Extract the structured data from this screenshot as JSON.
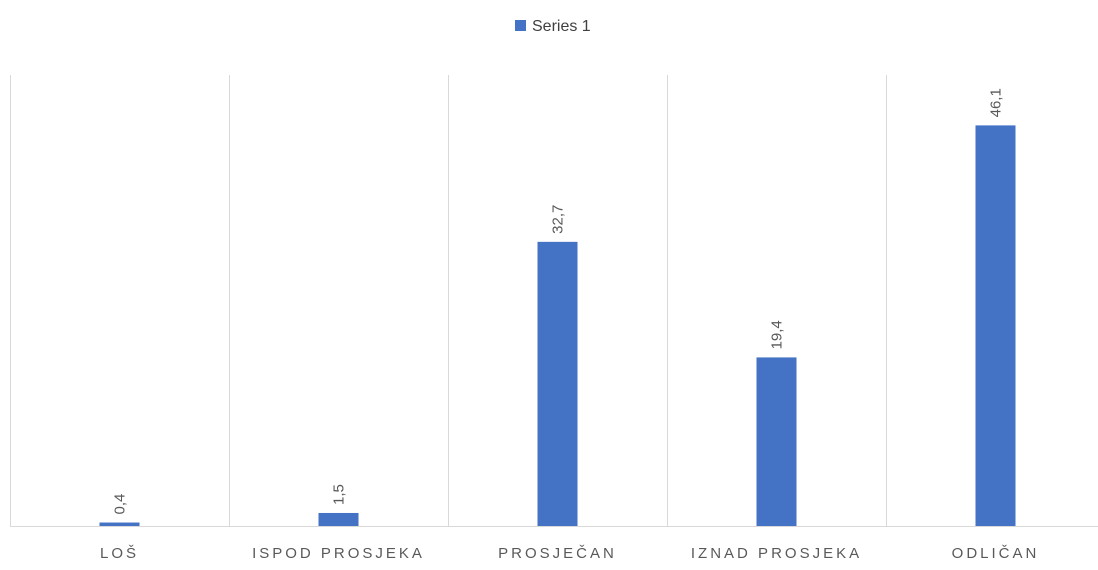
{
  "chart_data": {
    "type": "bar",
    "categories": [
      "LOŠ",
      "ISPOD PROSJEKA",
      "PROSJEČAN",
      "IZNAD PROSJEKA",
      "ODLIČAN"
    ],
    "series": [
      {
        "name": "Series 1",
        "values": [
          0.4,
          1.5,
          32.7,
          19.4,
          46.1
        ]
      }
    ],
    "data_labels": [
      "0,4",
      "1,5",
      "32,7",
      "19,4",
      "46,1"
    ],
    "legend_position": "top",
    "ylim": [
      0,
      51.9
    ],
    "grid": "vertical category separators",
    "colors": {
      "series": "#4472C4",
      "grid": "#D9D9D9",
      "text": "#595959",
      "legend_text": "#404040"
    }
  }
}
